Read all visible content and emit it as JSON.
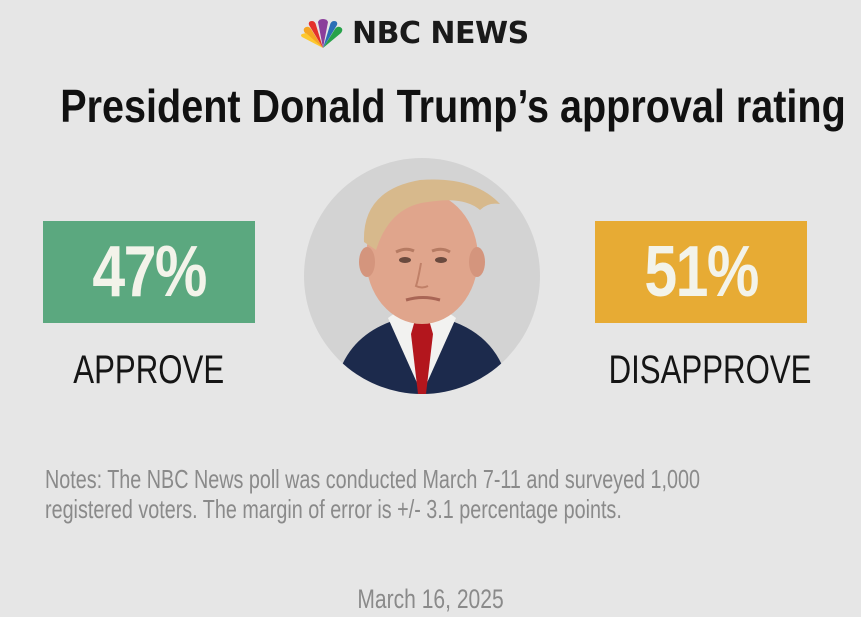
{
  "brand": {
    "logo_icon": "peacock-icon",
    "name": "NBC NEWS"
  },
  "title": "President Donald Trump’s approval rating",
  "approve": {
    "value": "47%",
    "label": "APPROVE",
    "color": "#5ba87f"
  },
  "disapprove": {
    "value": "51%",
    "label": "DISAPPROVE",
    "color": "#e7ab34"
  },
  "portrait": {
    "icon": "person-portrait-icon"
  },
  "notes": "Notes: The NBC News poll was conducted March 7-11 and surveyed 1,000 registered voters. The margin of error is +/- 3.1 percentage points.",
  "date": "March 16, 2025"
}
